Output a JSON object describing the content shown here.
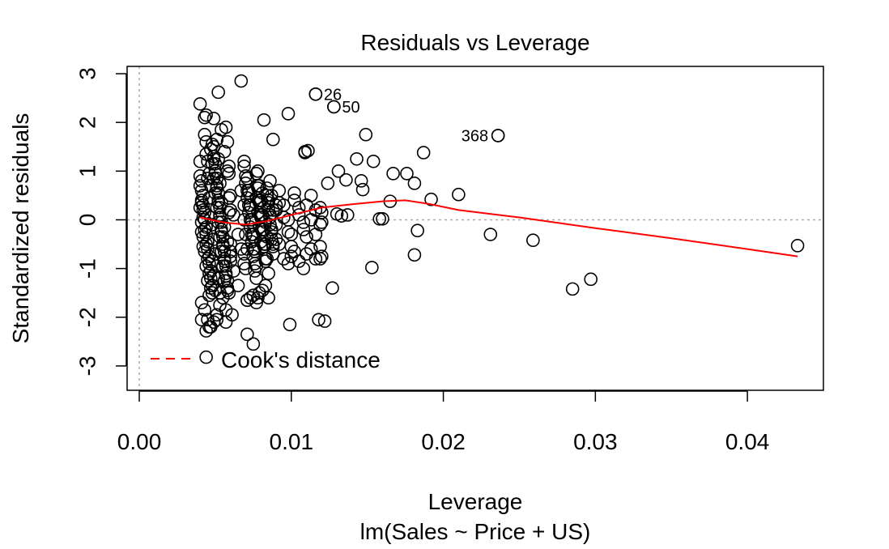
{
  "chart_data": {
    "type": "scatter",
    "title": "Residuals vs Leverage",
    "xlabel": "Leverage",
    "subtitle": "lm(Sales ~ Price + US)",
    "ylabel": "Standardized residuals",
    "xlim": [
      -0.0008,
      0.045
    ],
    "ylim": [
      -3.5,
      3.15
    ],
    "x_ticks": [
      0.0,
      0.01,
      0.02,
      0.03,
      0.04
    ],
    "x_tick_labels": [
      "0.00",
      "0.01",
      "0.02",
      "0.03",
      "0.04"
    ],
    "y_ticks": [
      -3,
      -2,
      -1,
      0,
      1,
      2,
      3
    ],
    "y_tick_labels": [
      "-3",
      "-2",
      "-1",
      "0",
      "1",
      "2",
      "3"
    ],
    "reference_lines": {
      "vertical_x": 0,
      "horizontal_y": 0,
      "style": "dotted",
      "color": "#aaaaaa"
    },
    "legend": {
      "label": "Cook's distance",
      "line_style": "dashed",
      "color": "#ff0000",
      "position": "bottom-left"
    },
    "point_style": {
      "shape": "open-circle",
      "color": "#000000"
    },
    "smoother": {
      "color": "#ff0000",
      "x": [
        0.004,
        0.0055,
        0.007,
        0.0085,
        0.01,
        0.012,
        0.014,
        0.016,
        0.0175,
        0.019,
        0.021,
        0.025,
        0.03,
        0.035,
        0.04,
        0.0433
      ],
      "y": [
        0.05,
        -0.05,
        -0.1,
        -0.02,
        0.1,
        0.25,
        0.32,
        0.38,
        0.4,
        0.33,
        0.2,
        0.05,
        -0.17,
        -0.38,
        -0.6,
        -0.75
      ]
    },
    "labeled_points": [
      {
        "label": "26",
        "x": 0.0116,
        "y": 2.58
      },
      {
        "label": "50",
        "x": 0.0128,
        "y": 2.32
      },
      {
        "label": "368",
        "x": 0.0236,
        "y": 1.73
      }
    ],
    "points_x": [
      0.0043,
      0.0044,
      0.0045,
      0.0046,
      0.0047,
      0.0041,
      0.0042,
      0.0048,
      0.0049,
      0.005,
      0.0051,
      0.0052,
      0.0053,
      0.0054,
      0.0056,
      0.0058,
      0.006,
      0.0062,
      0.0065,
      0.0067,
      0.0069,
      0.0043,
      0.0044,
      0.0045,
      0.0046,
      0.0047,
      0.0041,
      0.0042,
      0.0048,
      0.0049,
      0.005,
      0.0051,
      0.0052,
      0.0053,
      0.0054,
      0.0056,
      0.0058,
      0.006,
      0.0062,
      0.0065,
      0.0067,
      0.0069,
      0.004,
      0.0041,
      0.0042,
      0.0043,
      0.0044,
      0.0045,
      0.0046,
      0.0047,
      0.0048,
      0.0049,
      0.005,
      0.0051,
      0.0052,
      0.0053,
      0.0054,
      0.0055,
      0.0056,
      0.0057,
      0.0058,
      0.0059,
      0.006,
      0.004,
      0.0041,
      0.0042,
      0.0043,
      0.0044,
      0.0045,
      0.0046,
      0.0047,
      0.0048,
      0.0049,
      0.005,
      0.0051,
      0.0052,
      0.0053,
      0.0054,
      0.0055,
      0.0056,
      0.0057,
      0.0058,
      0.0059,
      0.006,
      0.004,
      0.0041,
      0.0042,
      0.0043,
      0.0044,
      0.0045,
      0.0046,
      0.0047,
      0.0048,
      0.0049,
      0.005,
      0.0051,
      0.0052,
      0.0053,
      0.0054,
      0.0055,
      0.0056,
      0.0057,
      0.0058,
      0.0059,
      0.006,
      0.004,
      0.0041,
      0.0042,
      0.0043,
      0.0044,
      0.0045,
      0.0046,
      0.0047,
      0.0048,
      0.0049,
      0.005,
      0.0051,
      0.0052,
      0.0053,
      0.0054,
      0.0055,
      0.0056,
      0.0057,
      0.0058,
      0.0059,
      0.006,
      0.0041,
      0.0043,
      0.0045,
      0.0047,
      0.0049,
      0.0051,
      0.0053,
      0.0055,
      0.0057,
      0.0059,
      0.0069,
      0.007,
      0.0071,
      0.0072,
      0.0073,
      0.0074,
      0.0075,
      0.0076,
      0.0077,
      0.0078,
      0.0079,
      0.008,
      0.0081,
      0.0082,
      0.0083,
      0.0084,
      0.0085,
      0.0086,
      0.0087,
      0.0088,
      0.009,
      0.0069,
      0.007,
      0.0071,
      0.0072,
      0.0073,
      0.0074,
      0.0075,
      0.0076,
      0.0077,
      0.0078,
      0.0079,
      0.008,
      0.0081,
      0.0082,
      0.0083,
      0.0084,
      0.0085,
      0.0086,
      0.0087,
      0.0088,
      0.009,
      0.0069,
      0.007,
      0.0071,
      0.0072,
      0.0073,
      0.0074,
      0.0075,
      0.0076,
      0.0077,
      0.0078,
      0.0079,
      0.008,
      0.0081,
      0.0082,
      0.0083,
      0.0084,
      0.0085,
      0.0086,
      0.0087,
      0.0088,
      0.009,
      0.0069,
      0.007,
      0.0071,
      0.0072,
      0.0073,
      0.0074,
      0.0075,
      0.0076,
      0.0077,
      0.0078,
      0.0079,
      0.008,
      0.0081,
      0.0082,
      0.0083,
      0.0084,
      0.0085,
      0.0086,
      0.0087,
      0.0088,
      0.009,
      0.0071,
      0.0073,
      0.0075,
      0.0077,
      0.0079,
      0.0081,
      0.0083,
      0.0085,
      0.0092,
      0.0095,
      0.0098,
      0.01,
      0.0102,
      0.0105,
      0.0108,
      0.011,
      0.0113,
      0.0116,
      0.0119,
      0.012,
      0.0092,
      0.0095,
      0.0098,
      0.01,
      0.0102,
      0.0105,
      0.0108,
      0.011,
      0.0113,
      0.0116,
      0.0119,
      0.012,
      0.0092,
      0.0095,
      0.0098,
      0.01,
      0.0102,
      0.0105,
      0.0108,
      0.011,
      0.0113,
      0.0116,
      0.0119,
      0.012,
      0.0116,
      0.0128,
      0.0067,
      0.0052,
      0.0098,
      0.0082,
      0.004,
      0.0044,
      0.0049,
      0.0088,
      0.0149,
      0.0111,
      0.0109,
      0.0143,
      0.0154,
      0.0131,
      0.0124,
      0.0136,
      0.0146,
      0.0147,
      0.0167,
      0.0176,
      0.0181,
      0.0187,
      0.0192,
      0.021,
      0.0236,
      0.0137,
      0.0158,
      0.0165,
      0.0183,
      0.0231,
      0.0259,
      0.016,
      0.0181,
      0.0153,
      0.0127,
      0.0119,
      0.0118,
      0.0099,
      0.0071,
      0.0075,
      0.0071,
      0.0078,
      0.0061,
      0.0057,
      0.0051,
      0.0046,
      0.0044,
      0.0044,
      0.0041,
      0.0285,
      0.0297,
      0.0433,
      0.0122,
      0.013,
      0.0133,
      0.0109
    ],
    "points_y": [
      2.1,
      1.6,
      1.2,
      0.95,
      0.7,
      0.4,
      0.2,
      -0.1,
      -0.4,
      -0.7,
      -0.95,
      -1.2,
      -1.5,
      1.85,
      1.4,
      1.0,
      0.5,
      0.1,
      -0.3,
      -0.6,
      -0.9,
      1.75,
      1.35,
      0.85,
      0.45,
      0.05,
      -0.25,
      -0.55,
      -0.85,
      -1.15,
      -1.45,
      1.65,
      1.25,
      0.75,
      0.35,
      -0.15,
      -0.45,
      -0.75,
      -1.05,
      -1.35,
      0.6,
      0.3,
      0.9,
      0.6,
      0.3,
      0.0,
      -0.3,
      -0.6,
      -0.9,
      -1.2,
      -1.5,
      1.3,
      1.0,
      0.7,
      0.4,
      0.1,
      -0.2,
      -0.5,
      -0.8,
      -1.1,
      -1.4,
      1.1,
      0.2,
      1.2,
      0.8,
      0.5,
      0.15,
      -0.15,
      -0.45,
      -0.75,
      -1.05,
      -1.35,
      1.5,
      1.15,
      0.85,
      0.55,
      0.25,
      -0.05,
      -0.35,
      -0.65,
      -0.95,
      -1.25,
      0.95,
      -0.5,
      0.7,
      0.35,
      0.05,
      -0.2,
      -0.5,
      -0.8,
      -1.1,
      -1.4,
      1.55,
      1.25,
      0.95,
      0.65,
      0.35,
      0.05,
      -0.25,
      -0.55,
      -0.85,
      -1.15,
      -1.45,
      0.45,
      -0.85,
      0.25,
      -0.05,
      -0.35,
      -0.65,
      -0.95,
      -1.25,
      -1.55,
      1.45,
      1.15,
      0.85,
      0.55,
      0.25,
      -0.05,
      -0.35,
      -0.65,
      -0.95,
      -1.25,
      1.9,
      1.6,
      0.15,
      -0.65,
      -1.7,
      -1.85,
      -2.05,
      -2.2,
      -2.1,
      -1.95,
      -1.75,
      -1.6,
      -1.85,
      -1.5,
      1.2,
      0.9,
      0.6,
      0.3,
      0.0,
      -0.3,
      -0.6,
      -0.9,
      -1.2,
      1.0,
      0.7,
      0.4,
      0.1,
      -0.2,
      -0.5,
      -0.8,
      -1.1,
      0.8,
      0.5,
      0.2,
      -0.1,
      1.1,
      0.75,
      0.45,
      0.15,
      -0.15,
      -0.45,
      -0.75,
      -1.05,
      0.95,
      0.65,
      0.35,
      0.05,
      -0.25,
      -0.55,
      -0.85,
      0.65,
      0.35,
      0.05,
      -0.25,
      -0.55,
      -0.4,
      -0.7,
      -1.0,
      0.85,
      0.55,
      0.25,
      -0.05,
      -0.35,
      -0.65,
      -0.95,
      0.7,
      0.4,
      0.1,
      -0.2,
      -0.5,
      -0.8,
      0.5,
      0.2,
      -0.1,
      -0.4,
      -0.7,
      0.3,
      0.0,
      -0.3,
      -0.6,
      0.6,
      0.3,
      0.0,
      -0.3,
      -0.6,
      0.45,
      0.15,
      -0.15,
      -0.45,
      0.55,
      0.25,
      -0.05,
      -0.35,
      0.4,
      0.1,
      -0.2,
      -0.5,
      0.2,
      -1.65,
      -1.6,
      -1.55,
      -1.7,
      -1.5,
      -1.45,
      -1.35,
      -1.6,
      0.35,
      0.05,
      -0.25,
      -0.55,
      0.4,
      0.1,
      -0.2,
      0.3,
      0.0,
      -0.3,
      0.25,
      -0.05,
      0.6,
      0.3,
      0.0,
      -0.3,
      0.55,
      0.25,
      -0.05,
      -0.35,
      0.5,
      0.2,
      -0.1,
      0.15,
      -0.5,
      -0.8,
      -0.9,
      -0.75,
      -0.65,
      -0.85,
      -1.0,
      -0.7,
      -0.6,
      -0.8,
      -0.55,
      -0.75,
      2.58,
      2.32,
      2.85,
      2.62,
      2.18,
      2.05,
      2.38,
      2.15,
      2.08,
      1.65,
      1.75,
      1.42,
      1.38,
      1.25,
      1.2,
      1.0,
      0.75,
      0.82,
      0.8,
      0.62,
      0.95,
      0.95,
      0.75,
      1.38,
      0.42,
      0.52,
      1.73,
      0.1,
      0.02,
      0.38,
      -0.22,
      -0.3,
      -0.42,
      0.02,
      -0.72,
      -0.98,
      -1.4,
      -0.8,
      -2.05,
      -2.15,
      -2.35,
      -2.55,
      -1.65,
      -1.6,
      -1.95,
      -2.1,
      -2.05,
      -2.2,
      -2.28,
      -2.82,
      -2.05,
      -1.42,
      -1.22,
      -0.53,
      -2.08,
      0.12,
      0.08,
      1.4
    ]
  }
}
